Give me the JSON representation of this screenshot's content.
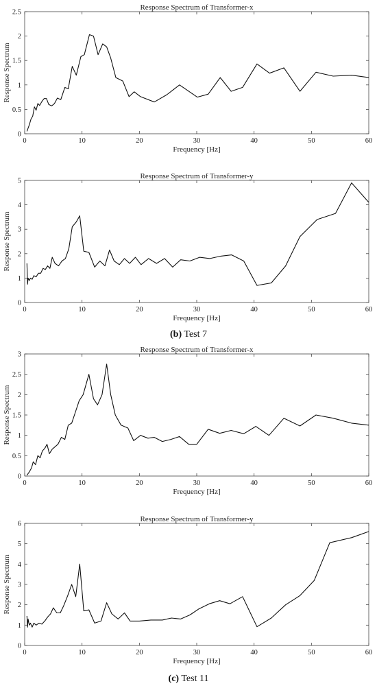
{
  "captions": {
    "b": {
      "letter": "(b)",
      "text": " Test 7"
    },
    "c": {
      "letter": "(c)",
      "text": " Test 11"
    }
  },
  "colors": {
    "line": "#111111",
    "axis": "#444444",
    "text": "#222222"
  },
  "chart_data": [
    {
      "type": "line",
      "title": "Response Spectrum of Transformer-x",
      "xlabel": "Frequency [Hz]",
      "ylabel": "Response Spectrum",
      "xlim": [
        0,
        60
      ],
      "ylim": [
        0,
        2.5
      ],
      "xticks": [
        0,
        10,
        20,
        30,
        40,
        50,
        60
      ],
      "yticks": [
        0,
        0.5,
        1,
        1.5,
        2,
        2.5
      ],
      "ytick_labels": [
        "0",
        "0.5",
        "1",
        "1.5",
        "2",
        "2.5"
      ],
      "grid": false,
      "series": [
        {
          "x": [
            0.4,
            0.8,
            1.1,
            1.4,
            1.7,
            2.0,
            2.3,
            2.6,
            3.0,
            3.4,
            3.8,
            4.2,
            4.7,
            5.2,
            5.7,
            6.3,
            7.0,
            7.6,
            8.3,
            9.0,
            9.8,
            10.4,
            11.3,
            12.0,
            12.8,
            13.6,
            14.3,
            15.0,
            15.9,
            17.1,
            18.2,
            19.1,
            20.2,
            22.6,
            24.8,
            27.0,
            30.1,
            32.0,
            34.1,
            36.0,
            38.0,
            40.5,
            42.7,
            45.2,
            48.0,
            50.8,
            53.8,
            57.0,
            60.0
          ],
          "y": [
            0.05,
            0.18,
            0.3,
            0.36,
            0.55,
            0.48,
            0.62,
            0.58,
            0.66,
            0.72,
            0.72,
            0.6,
            0.57,
            0.62,
            0.73,
            0.7,
            0.95,
            0.92,
            1.38,
            1.2,
            1.58,
            1.62,
            2.03,
            2.0,
            1.62,
            1.84,
            1.78,
            1.55,
            1.15,
            1.08,
            0.76,
            0.86,
            0.76,
            0.65,
            0.8,
            1.0,
            0.75,
            0.81,
            1.15,
            0.87,
            0.95,
            1.43,
            1.24,
            1.35,
            0.87,
            1.26,
            1.18,
            1.2,
            1.15
          ]
        }
      ]
    },
    {
      "type": "line",
      "title": "Response Spectrum of Transformer-y",
      "xlabel": "Frequency [Hz]",
      "ylabel": "Response Spectrum",
      "xlim": [
        0,
        60
      ],
      "ylim": [
        0,
        5
      ],
      "xticks": [
        0,
        10,
        20,
        30,
        40,
        50,
        60
      ],
      "yticks": [
        0,
        1,
        2,
        3,
        4,
        5
      ],
      "ytick_labels": [
        "0",
        "1",
        "2",
        "3",
        "4",
        "5"
      ],
      "grid": false,
      "series": [
        {
          "x": [
            0.4,
            0.5,
            0.6,
            0.8,
            1.0,
            1.3,
            1.6,
            2.0,
            2.4,
            2.8,
            3.2,
            3.6,
            4.0,
            4.4,
            4.8,
            5.3,
            5.9,
            6.5,
            7.1,
            7.7,
            8.3,
            9.0,
            9.6,
            10.3,
            11.2,
            12.2,
            13.1,
            14.0,
            14.8,
            15.6,
            16.5,
            17.4,
            18.3,
            19.3,
            20.3,
            21.6,
            23.0,
            24.4,
            25.8,
            27.2,
            28.8,
            30.5,
            32.3,
            34.2,
            36.1,
            38.2,
            40.5,
            43.0,
            45.5,
            48.0,
            51.0,
            54.2,
            57.0,
            60.0
          ],
          "y": [
            1.6,
            0.75,
            1.0,
            0.9,
            1.0,
            0.95,
            1.1,
            1.05,
            1.2,
            1.2,
            1.4,
            1.35,
            1.5,
            1.4,
            1.85,
            1.6,
            1.5,
            1.7,
            1.8,
            2.2,
            3.1,
            3.3,
            3.55,
            2.1,
            2.05,
            1.45,
            1.7,
            1.5,
            2.15,
            1.7,
            1.55,
            1.8,
            1.6,
            1.85,
            1.55,
            1.8,
            1.6,
            1.8,
            1.45,
            1.75,
            1.7,
            1.85,
            1.8,
            1.9,
            1.95,
            1.7,
            0.7,
            0.8,
            1.5,
            2.7,
            3.4,
            3.65,
            4.9,
            4.1
          ]
        }
      ]
    },
    {
      "type": "line",
      "title": "Response Spectrum of Transformer-x",
      "xlabel": "Frequency [Hz]",
      "ylabel": "Response Spectrum",
      "xlim": [
        0,
        60
      ],
      "ylim": [
        0,
        3
      ],
      "xticks": [
        0,
        10,
        20,
        30,
        40,
        50,
        60
      ],
      "yticks": [
        0,
        0.5,
        1,
        1.5,
        2,
        2.5,
        3
      ],
      "ytick_labels": [
        "0",
        "0.5",
        "1",
        "1.5",
        "2",
        "2.5",
        "3"
      ],
      "grid": false,
      "series": [
        {
          "x": [
            0.4,
            0.8,
            1.2,
            1.5,
            1.9,
            2.3,
            2.7,
            3.1,
            3.5,
            3.9,
            4.3,
            4.8,
            5.3,
            5.8,
            6.4,
            7.0,
            7.6,
            8.2,
            8.8,
            9.5,
            10.2,
            11.2,
            12.0,
            12.7,
            13.5,
            14.3,
            15.0,
            15.8,
            16.8,
            18.0,
            19.0,
            20.2,
            21.5,
            22.6,
            24.0,
            25.5,
            27.0,
            28.6,
            30.0,
            32.0,
            34.0,
            36.0,
            38.2,
            40.3,
            42.6,
            45.2,
            48.0,
            50.8,
            53.8,
            57.0,
            60.0
          ],
          "y": [
            0.02,
            0.1,
            0.2,
            0.35,
            0.28,
            0.5,
            0.45,
            0.62,
            0.68,
            0.78,
            0.55,
            0.66,
            0.72,
            0.78,
            0.95,
            0.9,
            1.25,
            1.3,
            1.55,
            1.85,
            2.0,
            2.5,
            1.9,
            1.75,
            2.0,
            2.75,
            2.0,
            1.5,
            1.25,
            1.18,
            0.87,
            1.0,
            0.93,
            0.95,
            0.85,
            0.9,
            0.97,
            0.78,
            0.78,
            1.15,
            1.05,
            1.12,
            1.04,
            1.22,
            1.0,
            1.42,
            1.23,
            1.5,
            1.42,
            1.3,
            1.25
          ]
        }
      ]
    },
    {
      "type": "line",
      "title": "Response Spectrum of Transformer-y",
      "xlabel": "Frequency [Hz]",
      "ylabel": "Response Spectrum",
      "xlim": [
        0,
        60
      ],
      "ylim": [
        0,
        6
      ],
      "xticks": [
        0,
        10,
        20,
        30,
        40,
        50,
        60
      ],
      "yticks": [
        0,
        1,
        2,
        3,
        4,
        5,
        6
      ],
      "ytick_labels": [
        "0",
        "1",
        "2",
        "3",
        "4",
        "5",
        "6"
      ],
      "grid": false,
      "series": [
        {
          "x": [
            0.4,
            0.5,
            0.6,
            0.8,
            1.0,
            1.3,
            1.6,
            2.0,
            2.5,
            3.0,
            3.5,
            4.0,
            4.5,
            5.0,
            5.6,
            6.2,
            6.8,
            7.5,
            8.2,
            8.9,
            9.6,
            10.3,
            11.2,
            12.2,
            13.3,
            14.3,
            15.2,
            16.3,
            17.4,
            18.4,
            20.0,
            22.0,
            24.0,
            25.6,
            27.2,
            28.8,
            30.4,
            32.2,
            34.0,
            35.8,
            38.0,
            40.5,
            43.0,
            45.5,
            48.0,
            50.5,
            53.2,
            57.0,
            60.0
          ],
          "y": [
            1.45,
            0.9,
            1.3,
            1.0,
            1.1,
            0.9,
            1.1,
            1.0,
            1.1,
            1.05,
            1.2,
            1.4,
            1.55,
            1.85,
            1.6,
            1.6,
            1.95,
            2.45,
            3.0,
            2.4,
            4.0,
            1.7,
            1.75,
            1.1,
            1.2,
            2.1,
            1.55,
            1.3,
            1.6,
            1.2,
            1.2,
            1.25,
            1.25,
            1.35,
            1.3,
            1.5,
            1.8,
            2.05,
            2.2,
            2.05,
            2.4,
            0.92,
            1.35,
            2.0,
            2.45,
            3.2,
            5.05,
            5.3,
            5.6
          ]
        }
      ]
    }
  ]
}
